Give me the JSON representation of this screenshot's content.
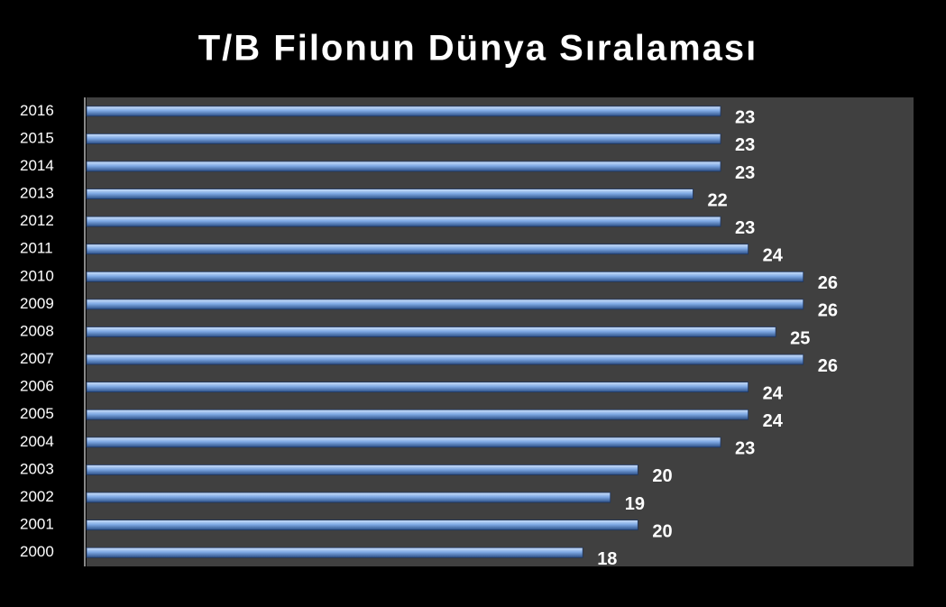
{
  "chart_data": {
    "type": "bar",
    "orientation": "horizontal",
    "title": "T/B Filonun Dünya Sıralaması",
    "categories": [
      "2016",
      "2015",
      "2014",
      "2013",
      "2012",
      "2011",
      "2010",
      "2009",
      "2008",
      "2007",
      "2006",
      "2005",
      "2004",
      "2003",
      "2002",
      "2001",
      "2000"
    ],
    "values": [
      23,
      23,
      23,
      22,
      23,
      24,
      26,
      26,
      25,
      26,
      24,
      24,
      23,
      20,
      19,
      20,
      18
    ],
    "color": "#5b8fd6",
    "xlim": [
      0,
      30
    ]
  }
}
